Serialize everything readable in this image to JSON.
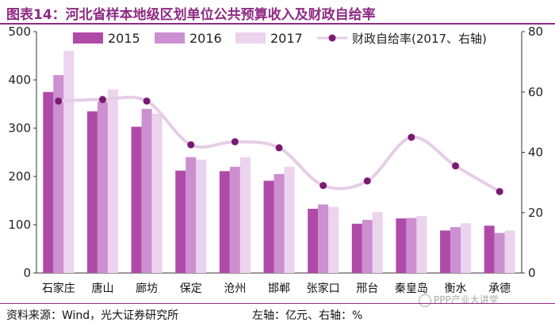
{
  "header": {
    "title": "图表14：河北省样本地级区划单位公共预算收入及财政自给率"
  },
  "footer": {
    "source": "资料来源：Wind，光大证券研究所",
    "axis_note": "左轴：亿元、右轴：%"
  },
  "watermark": {
    "text": "PPP产业大讲堂"
  },
  "colors": {
    "title": "#8e2a83",
    "s2015": "#b04aa9",
    "s2016": "#cc8fd0",
    "s2017": "#ecd3ee",
    "ratio_line": "#e6cde6",
    "ratio_marker": "#7a1a72"
  },
  "chart_data": {
    "type": "bar",
    "categories": [
      "石家庄",
      "唐山",
      "廊坊",
      "保定",
      "沧州",
      "邯郸",
      "张家口",
      "邢台",
      "秦皇岛",
      "衡水",
      "承德"
    ],
    "series": [
      {
        "name": "2015",
        "axis": "left",
        "values": [
          375,
          335,
          303,
          212,
          211,
          191,
          133,
          102,
          113,
          88,
          98
        ]
      },
      {
        "name": "2016",
        "axis": "left",
        "values": [
          410,
          355,
          340,
          240,
          220,
          205,
          142,
          110,
          114,
          95,
          83
        ]
      },
      {
        "name": "2017",
        "axis": "left",
        "values": [
          460,
          380,
          330,
          235,
          240,
          220,
          137,
          126,
          118,
          103,
          88
        ]
      },
      {
        "name": "财政自给率(2017、右轴)",
        "axis": "right",
        "type": "line",
        "values": [
          57,
          57.5,
          57,
          42.5,
          43.5,
          41.5,
          29,
          30.5,
          45,
          35.5,
          27
        ]
      }
    ],
    "left_axis": {
      "min": 0,
      "max": 500,
      "ticks": [
        0,
        100,
        200,
        300,
        400,
        500
      ]
    },
    "right_axis": {
      "min": 0,
      "max": 80,
      "ticks": [
        0,
        20,
        40,
        60,
        80
      ]
    },
    "legend": {
      "labels": [
        "2015",
        "2016",
        "2017",
        "财政自给率(2017、右轴)"
      ],
      "position": "top"
    }
  }
}
